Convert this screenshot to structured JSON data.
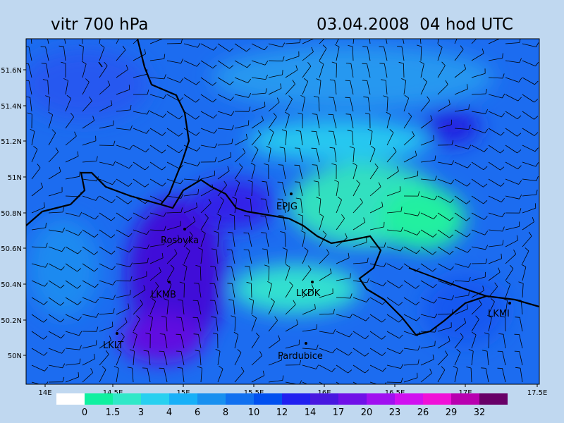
{
  "header": {
    "title": "vitr 700 hPa",
    "time": "03.04.2008  04 hod UTC"
  },
  "map": {
    "lat_labels": [
      "51.6N",
      "51.4N",
      "51.2N",
      "51N",
      "50.8N",
      "50.6N",
      "50.4N",
      "50.2N",
      "50N"
    ],
    "lon_labels": [
      "14E",
      "14.5E",
      "15E",
      "15.5E",
      "16E",
      "16.5E",
      "17E",
      "17.5E"
    ],
    "stations": [
      "EPJG",
      "Rosovka",
      "LKMB",
      "LKDK",
      "LKLT",
      "Pardubice",
      "LKMI"
    ]
  },
  "legend": {
    "bounds": [
      0,
      1.5,
      3,
      4,
      6,
      8,
      10,
      12,
      14,
      17,
      20,
      23,
      26,
      29,
      32
    ],
    "colors": [
      "#ffffff",
      "#10f0a0",
      "#30e8c8",
      "#28d0f0",
      "#18b0f8",
      "#1890f0",
      "#1070f0",
      "#0050f0",
      "#2020f0",
      "#4818e0",
      "#7010e8",
      "#a010f0",
      "#d010f0",
      "#f010d8",
      "#b800b0",
      "#680068"
    ]
  }
}
